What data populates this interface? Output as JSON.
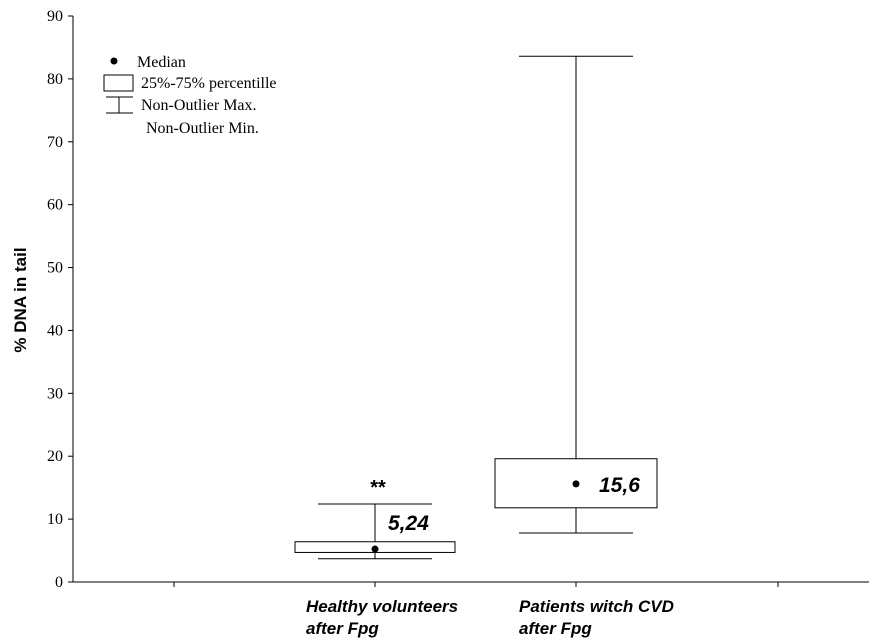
{
  "chart_data": {
    "type": "box",
    "ylabel": "% DNA in tail",
    "ylim": [
      0,
      90
    ],
    "yticks": [
      "0",
      "10",
      "20",
      "30",
      "40",
      "50",
      "60",
      "70",
      "80",
      "90"
    ],
    "categories": [
      {
        "line1": "Healthy volunteers",
        "line2": "after Fpg"
      },
      {
        "line1": "Patients witch CVD",
        "line2": "after Fpg"
      }
    ],
    "boxes": [
      {
        "min": 3.7,
        "q1": 4.7,
        "median": 5.24,
        "q3": 6.4,
        "max": 12.4,
        "median_label": "5,24",
        "annotation": "**"
      },
      {
        "min": 7.8,
        "q1": 11.8,
        "median": 15.6,
        "q3": 19.6,
        "max": 83.6,
        "median_label": "15,6",
        "annotation": ""
      }
    ],
    "legend": [
      {
        "symbol": "dot",
        "label": "Median"
      },
      {
        "symbol": "box",
        "label": "25%-75% percentille"
      },
      {
        "symbol": "whisker",
        "label": "Non-Outlier Max."
      },
      {
        "symbol": "none",
        "label": "Non-Outlier Min."
      }
    ],
    "legend_position": "top-left",
    "grid": false
  }
}
